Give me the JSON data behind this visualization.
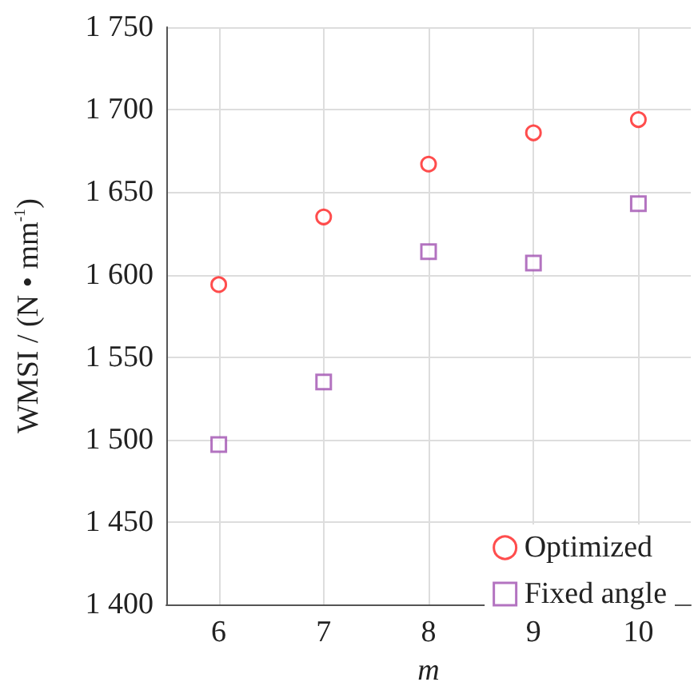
{
  "chart_data": {
    "type": "scatter",
    "xlabel": "m",
    "ylabel": "WMSI / (N • mm$^{-1}$)",
    "x": [
      6,
      7,
      8,
      9,
      10
    ],
    "series": [
      {
        "name": "Optimized",
        "color": "#ff2020",
        "marker": "circle",
        "values": [
          1594,
          1635,
          1667,
          1686,
          1694
        ]
      },
      {
        "name": "Fixed angle",
        "color": "#a050b0",
        "marker": "square",
        "values": [
          1497,
          1535,
          1614,
          1607,
          1643
        ]
      }
    ],
    "xlim": [
      5.5,
      10.5
    ],
    "xticks": [
      6,
      7,
      8,
      9,
      10
    ],
    "ylim": [
      1400,
      1750
    ],
    "yticks": [
      {
        "value": 1400,
        "label": "1 400"
      },
      {
        "value": 1450,
        "label": "1 450"
      },
      {
        "value": 1500,
        "label": "1 500"
      },
      {
        "value": 1550,
        "label": "1 550"
      },
      {
        "value": 1600,
        "label": "1 600"
      },
      {
        "value": 1650,
        "label": "1 650"
      },
      {
        "value": 1700,
        "label": "1 700"
      },
      {
        "value": 1750,
        "label": "1 750"
      }
    ],
    "grid": true,
    "legend": "bottom right"
  }
}
